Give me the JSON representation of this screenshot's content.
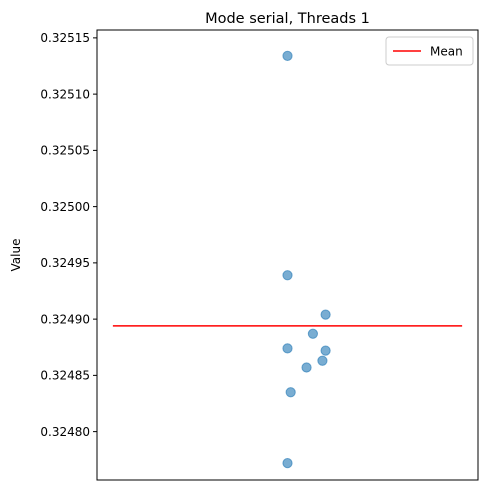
{
  "chart_data": {
    "type": "scatter",
    "title": "Mode serial, Threads 1",
    "xlabel": "",
    "ylabel": "Value",
    "xlim": [
      -0.6,
      0.6
    ],
    "ylim": [
      0.324757,
      0.325157
    ],
    "x_ticks_visible": false,
    "yticks": [
      0.3248,
      0.32485,
      0.3249,
      0.32495,
      0.325,
      0.32505,
      0.3251,
      0.32515
    ],
    "ytick_labels": [
      "0.32480",
      "0.32485",
      "0.32490",
      "0.32495",
      "0.32500",
      "0.32505",
      "0.32510",
      "0.32515"
    ],
    "grid": false,
    "legend": {
      "position": "top-right",
      "entries": [
        {
          "label": "Mean",
          "color": "#ff0000",
          "marker": "line"
        }
      ]
    },
    "series": [
      {
        "values_x": [
          0.0,
          0.0,
          0.12,
          0.08,
          0.0,
          0.12,
          0.11,
          0.06,
          0.01,
          0.0
        ],
        "values_y": [
          0.325134,
          0.324939,
          0.324904,
          0.324887,
          0.324874,
          0.324872,
          0.324863,
          0.324857,
          0.324835,
          0.324772
        ],
        "color": "#1f77b4",
        "alpha": 0.6,
        "marker": "circle"
      }
    ],
    "mean": {
      "value": 0.324894,
      "x_start": -0.55,
      "x_end": 0.55,
      "color": "#ff0000"
    }
  }
}
